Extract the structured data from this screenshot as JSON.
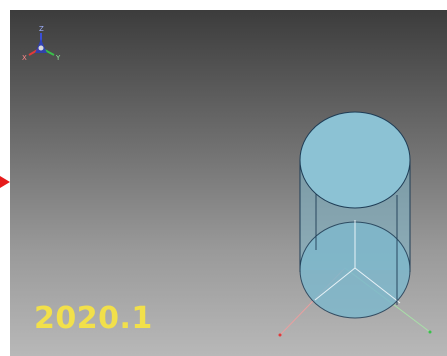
{
  "viewport": {
    "corner_label": "",
    "version_label": "2020.1"
  },
  "triad": {
    "x_label": "X",
    "y_label": "Y",
    "z_label": "Z"
  },
  "colors": {
    "cylinder_fill": "#7fb8cc",
    "cylinder_edge": "#1e3c55",
    "axis_x": "#e23a3a",
    "axis_y": "#38c24a",
    "axis_z": "#3a4fd8",
    "version_text": "#f2e04a",
    "marker": "#e61b1b"
  }
}
